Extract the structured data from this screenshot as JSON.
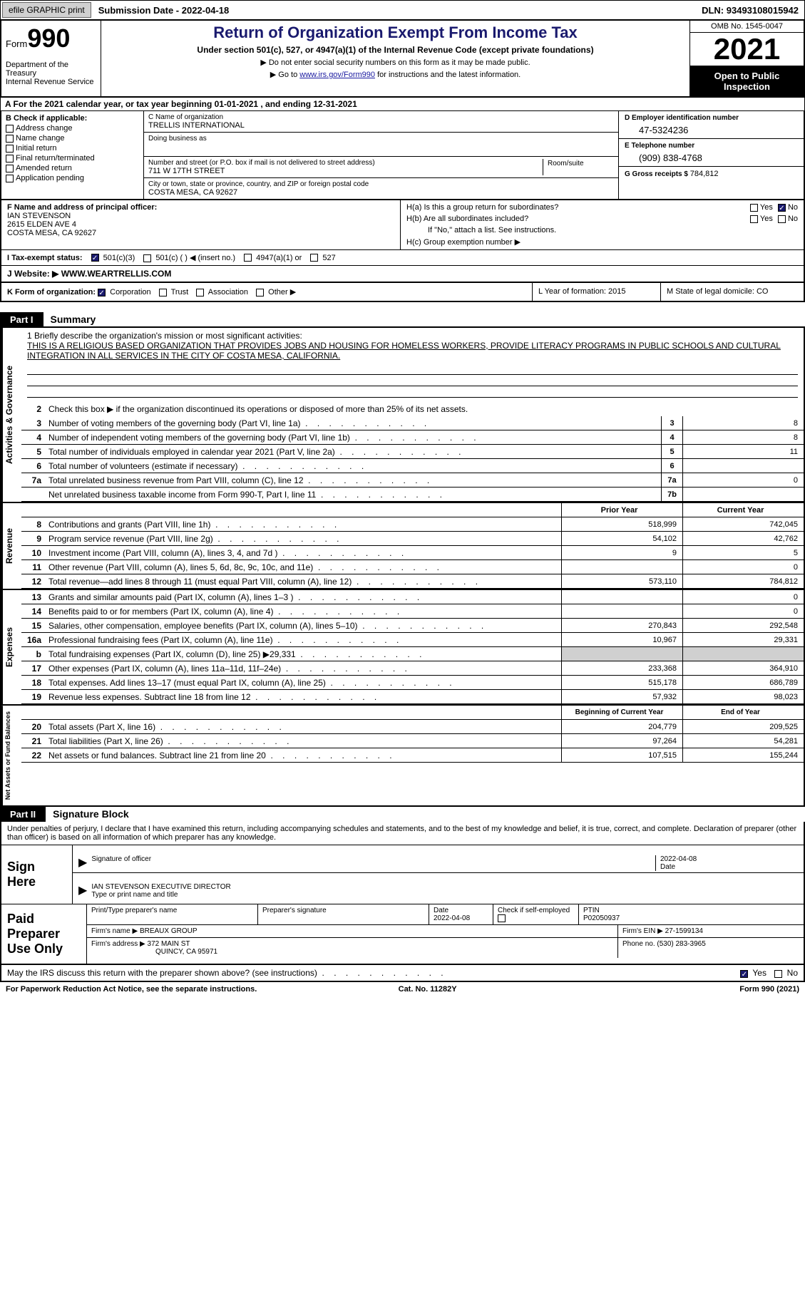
{
  "topbar": {
    "efile": "efile GRAPHIC print",
    "subdate_label": "Submission Date - ",
    "subdate": "2022-04-18",
    "dln_label": "DLN: ",
    "dln": "93493108015942"
  },
  "header": {
    "form_label": "Form",
    "form_num": "990",
    "dept": "Department of the Treasury\nInternal Revenue Service",
    "title": "Return of Organization Exempt From Income Tax",
    "sub1": "Under section 501(c), 527, or 4947(a)(1) of the Internal Revenue Code (except private foundations)",
    "sub2a": "▶ Do not enter social security numbers on this form as it may be made public.",
    "sub2b_pre": "▶ Go to ",
    "sub2b_link": "www.irs.gov/Form990",
    "sub2b_post": " for instructions and the latest information.",
    "omb": "OMB No. 1545-0047",
    "year": "2021",
    "open": "Open to Public Inspection"
  },
  "rowA": "A For the 2021 calendar year, or tax year beginning 01-01-2021    , and ending 12-31-2021",
  "colB": {
    "title": "B Check if applicable:",
    "opts": [
      "Address change",
      "Name change",
      "Initial return",
      "Final return/terminated",
      "Amended return",
      "Application pending"
    ]
  },
  "colC": {
    "name_lbl": "C Name of organization",
    "name": "TRELLIS INTERNATIONAL",
    "dba_lbl": "Doing business as",
    "addr_lbl": "Number and street (or P.O. box if mail is not delivered to street address)",
    "room_lbl": "Room/suite",
    "addr": "711 W 17TH STREET",
    "city_lbl": "City or town, state or province, country, and ZIP or foreign postal code",
    "city": "COSTA MESA, CA  92627"
  },
  "colD": {
    "ein_lbl": "D Employer identification number",
    "ein": "47-5324236",
    "tel_lbl": "E Telephone number",
    "tel": "(909) 838-4768",
    "gross_lbl": "G Gross receipts $ ",
    "gross": "784,812"
  },
  "boxF": {
    "lbl": "F  Name and address of principal officer:",
    "name": "IAN STEVENSON",
    "addr1": "2615 ELDEN AVE 4",
    "addr2": "COSTA MESA, CA  92627"
  },
  "boxH": {
    "ha": "H(a)  Is this a group return for subordinates?",
    "hb": "H(b)  Are all subordinates included?",
    "hb_note": "If \"No,\" attach a list. See instructions.",
    "hc": "H(c)  Group exemption number ▶",
    "yes": "Yes",
    "no": "No"
  },
  "rowI": {
    "lbl": "I   Tax-exempt status:",
    "o1": "501(c)(3)",
    "o2": "501(c) (  ) ◀ (insert no.)",
    "o3": "4947(a)(1) or",
    "o4": "527"
  },
  "rowJ": {
    "lbl": "J   Website: ▶ ",
    "val": " WWW.WEARTRELLIS.COM"
  },
  "rowK": {
    "lbl": "K Form of organization:",
    "o1": "Corporation",
    "o2": "Trust",
    "o3": "Association",
    "o4": "Other ▶"
  },
  "rowL": {
    "lbl": "L Year of formation: ",
    "val": "2015"
  },
  "rowM": {
    "lbl": "M State of legal domicile: ",
    "val": "CO"
  },
  "part1": {
    "label": "Part I",
    "title": "Summary"
  },
  "vtabs": {
    "act": "Activities & Governance",
    "rev": "Revenue",
    "exp": "Expenses",
    "net": "Net Assets or Fund Balances"
  },
  "mission": {
    "q": "1   Briefly describe the organization's mission or most significant activities:",
    "text": "THIS IS A RELIGIOUS BASED ORGANIZATION THAT PROVIDES JOBS AND HOUSING FOR HOMELESS WORKERS, PROVIDE LITERACY PROGRAMS IN PUBLIC SCHOOLS AND CULTURAL INTEGRATION IN ALL SERVICES IN THE CITY OF COSTA MESA, CALIFORNIA."
  },
  "line2": "Check this box ▶      if the organization discontinued its operations or disposed of more than 25% of its net assets.",
  "lines_gov": [
    {
      "n": "3",
      "t": "Number of voting members of the governing body (Part VI, line 1a)",
      "c": "3",
      "v": "8"
    },
    {
      "n": "4",
      "t": "Number of independent voting members of the governing body (Part VI, line 1b)",
      "c": "4",
      "v": "8"
    },
    {
      "n": "5",
      "t": "Total number of individuals employed in calendar year 2021 (Part V, line 2a)",
      "c": "5",
      "v": "11"
    },
    {
      "n": "6",
      "t": "Total number of volunteers (estimate if necessary)",
      "c": "6",
      "v": ""
    },
    {
      "n": "7a",
      "t": "Total unrelated business revenue from Part VIII, column (C), line 12",
      "c": "7a",
      "v": "0"
    },
    {
      "n": "",
      "t": "Net unrelated business taxable income from Form 990-T, Part I, line 11",
      "c": "7b",
      "v": ""
    }
  ],
  "colhdr": {
    "prior": "Prior Year",
    "current": "Current Year",
    "beg": "Beginning of Current Year",
    "end": "End of Year"
  },
  "lines_rev": [
    {
      "n": "8",
      "t": "Contributions and grants (Part VIII, line 1h)",
      "p": "518,999",
      "c": "742,045"
    },
    {
      "n": "9",
      "t": "Program service revenue (Part VIII, line 2g)",
      "p": "54,102",
      "c": "42,762"
    },
    {
      "n": "10",
      "t": "Investment income (Part VIII, column (A), lines 3, 4, and 7d )",
      "p": "9",
      "c": "5"
    },
    {
      "n": "11",
      "t": "Other revenue (Part VIII, column (A), lines 5, 6d, 8c, 9c, 10c, and 11e)",
      "p": "",
      "c": "0"
    },
    {
      "n": "12",
      "t": "Total revenue—add lines 8 through 11 (must equal Part VIII, column (A), line 12)",
      "p": "573,110",
      "c": "784,812"
    }
  ],
  "lines_exp": [
    {
      "n": "13",
      "t": "Grants and similar amounts paid (Part IX, column (A), lines 1–3 )",
      "p": "",
      "c": "0"
    },
    {
      "n": "14",
      "t": "Benefits paid to or for members (Part IX, column (A), line 4)",
      "p": "",
      "c": "0"
    },
    {
      "n": "15",
      "t": "Salaries, other compensation, employee benefits (Part IX, column (A), lines 5–10)",
      "p": "270,843",
      "c": "292,548"
    },
    {
      "n": "16a",
      "t": "Professional fundraising fees (Part IX, column (A), line 11e)",
      "p": "10,967",
      "c": "29,331"
    },
    {
      "n": "b",
      "t": "Total fundraising expenses (Part IX, column (D), line 25) ▶29,331",
      "p": "GRAY",
      "c": "GRAY"
    },
    {
      "n": "17",
      "t": "Other expenses (Part IX, column (A), lines 11a–11d, 11f–24e)",
      "p": "233,368",
      "c": "364,910"
    },
    {
      "n": "18",
      "t": "Total expenses. Add lines 13–17 (must equal Part IX, column (A), line 25)",
      "p": "515,178",
      "c": "686,789"
    },
    {
      "n": "19",
      "t": "Revenue less expenses. Subtract line 18 from line 12",
      "p": "57,932",
      "c": "98,023"
    }
  ],
  "lines_net": [
    {
      "n": "20",
      "t": "Total assets (Part X, line 16)",
      "p": "204,779",
      "c": "209,525"
    },
    {
      "n": "21",
      "t": "Total liabilities (Part X, line 26)",
      "p": "97,264",
      "c": "54,281"
    },
    {
      "n": "22",
      "t": "Net assets or fund balances. Subtract line 21 from line 20",
      "p": "107,515",
      "c": "155,244"
    }
  ],
  "part2": {
    "label": "Part II",
    "title": "Signature Block"
  },
  "sig": {
    "decl": "Under penalties of perjury, I declare that I have examined this return, including accompanying schedules and statements, and to the best of my knowledge and belief, it is true, correct, and complete. Declaration of preparer (other than officer) is based on all information of which preparer has any knowledge.",
    "here": "Sign Here",
    "sigoff": "Signature of officer",
    "date": "Date",
    "dateval": "2022-04-08",
    "name": "IAN STEVENSON  EXECUTIVE DIRECTOR",
    "name_lbl": "Type or print name and title"
  },
  "prep": {
    "label": "Paid Preparer Use Only",
    "pname_lbl": "Print/Type preparer's name",
    "psig_lbl": "Preparer's signature",
    "pdate_lbl": "Date",
    "pdate": "2022-04-08",
    "pcheck": "Check          if self-employed",
    "ptin_lbl": "PTIN",
    "ptin": "P02050937",
    "firm_lbl": "Firm's name     ▶ ",
    "firm": "BREAUX GROUP",
    "ein_lbl": "Firm's EIN ▶ ",
    "ein": "27-1599134",
    "addr_lbl": "Firm's address ▶ ",
    "addr1": "372 MAIN ST",
    "addr2": "QUINCY, CA  95971",
    "phone_lbl": "Phone no. ",
    "phone": "(530) 283-3965"
  },
  "may": {
    "q": "May the IRS discuss this return with the preparer shown above? (see instructions)",
    "yes": "Yes",
    "no": "No"
  },
  "footer": {
    "left": "For Paperwork Reduction Act Notice, see the separate instructions.",
    "mid": "Cat. No. 11282Y",
    "right": "Form 990 (2021)"
  },
  "colors": {
    "darkblue": "#1a1a6e",
    "link": "#1a1aa0",
    "gray": "#d0d0d0"
  }
}
